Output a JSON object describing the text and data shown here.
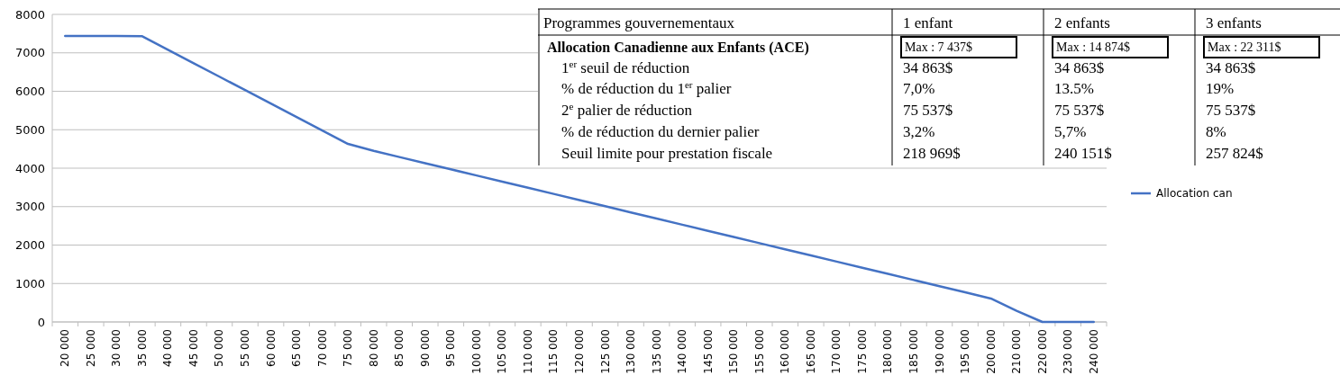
{
  "chart_data": {
    "type": "line",
    "categories": [
      "20 000",
      "25 000",
      "30 000",
      "35 000",
      "40 000",
      "45 000",
      "50 000",
      "55 000",
      "60 000",
      "65 000",
      "70 000",
      "75 000",
      "80 000",
      "85 000",
      "90 000",
      "95 000",
      "100 000",
      "105 000",
      "110 000",
      "115 000",
      "120 000",
      "125 000",
      "130 000",
      "135 000",
      "140 000",
      "145 000",
      "150 000",
      "155 000",
      "160 000",
      "165 000",
      "170 000",
      "175 000",
      "180 000",
      "185 000",
      "190 000",
      "195 000",
      "200 000",
      "210 000",
      "220 000",
      "230 000",
      "240 000"
    ],
    "series": [
      {
        "name": "Allocation can",
        "color": "#4472c4",
        "values": [
          7440,
          7440,
          7440,
          7430,
          7080,
          6730,
          6380,
          6030,
          5680,
          5330,
          4980,
          4630,
          4450,
          4290,
          4130,
          3970,
          3810,
          3650,
          3490,
          3330,
          3170,
          3010,
          2850,
          2690,
          2530,
          2370,
          2210,
          2050,
          1890,
          1730,
          1570,
          1410,
          1250,
          1090,
          930,
          770,
          610,
          290,
          0,
          0,
          0
        ]
      }
    ],
    "ylim": [
      0,
      8000
    ],
    "yticks": [
      0,
      1000,
      2000,
      3000,
      4000,
      5000,
      6000,
      7000,
      8000
    ],
    "grid": "y",
    "legend": "right",
    "marker": "none",
    "line_style": "solid",
    "annotations": [
      "Programmes gouvernementaux",
      "1 enfant",
      "2 enfants",
      "3 enfants",
      "Allocation Canadienne aux Enfants (ACE)",
      "Max : 7 437$",
      "Max : 14 874$",
      "Max : 22 311$",
      "1$^{er}$ seuil de réduction",
      "34 863$",
      "34 863$",
      "34 863$",
      "% de réduction du 1$^{er}$ palier",
      "7,0%",
      "13.5%",
      "19%",
      "2$^{e}$ palier de réduction",
      "75 537$",
      "75 537$",
      "75 537$",
      "% de réduction du dernier palier",
      "3,2%",
      "5,7%",
      "8%",
      "Seuil limite pour prestation fiscale",
      "218 969$",
      "240 151$",
      "257 824$"
    ]
  }
}
